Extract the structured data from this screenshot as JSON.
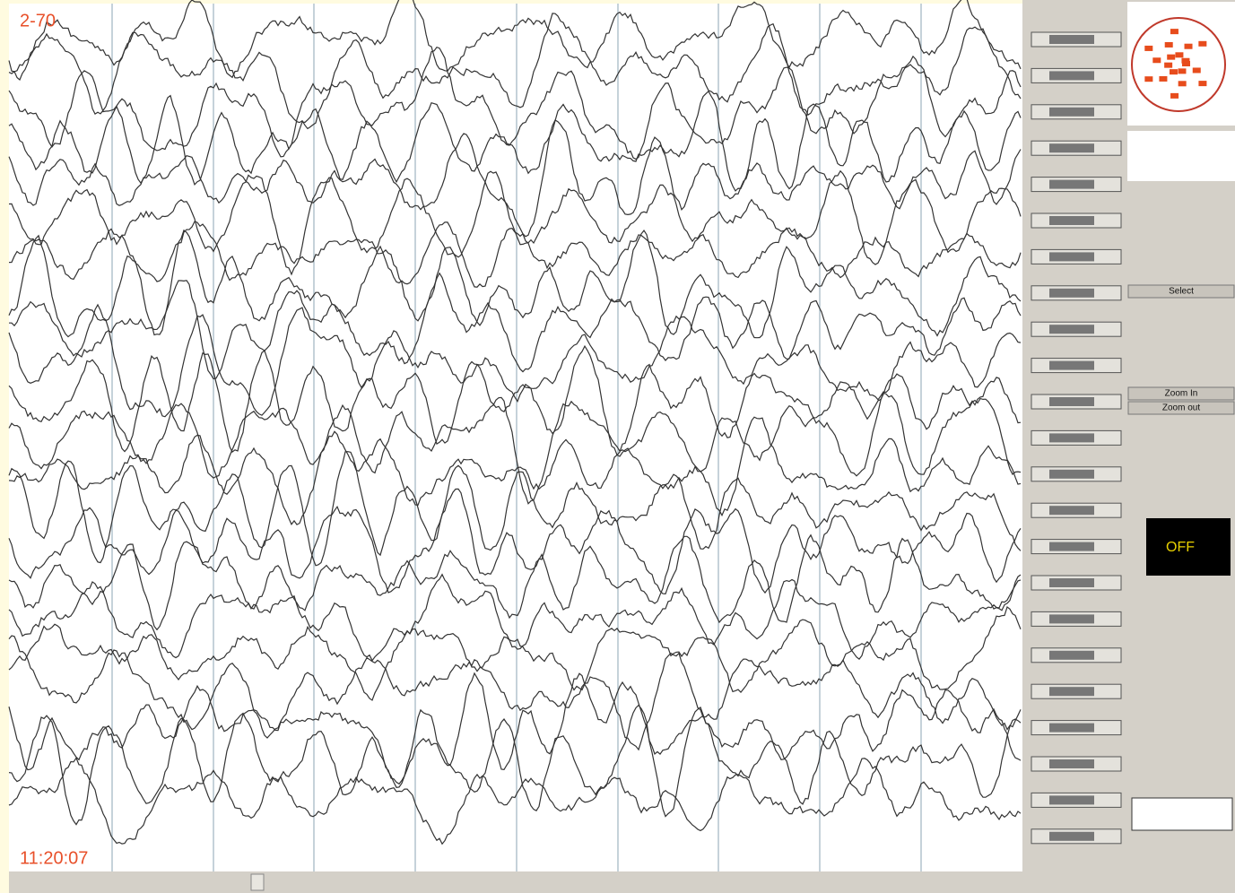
{
  "header": {
    "filter": "2-70"
  },
  "status": {
    "time": "11:20:07"
  },
  "panel": {
    "select": "Select",
    "zoom_in": "Zoom In",
    "zoom_out": "Zoom out",
    "display": "OFF"
  }
}
